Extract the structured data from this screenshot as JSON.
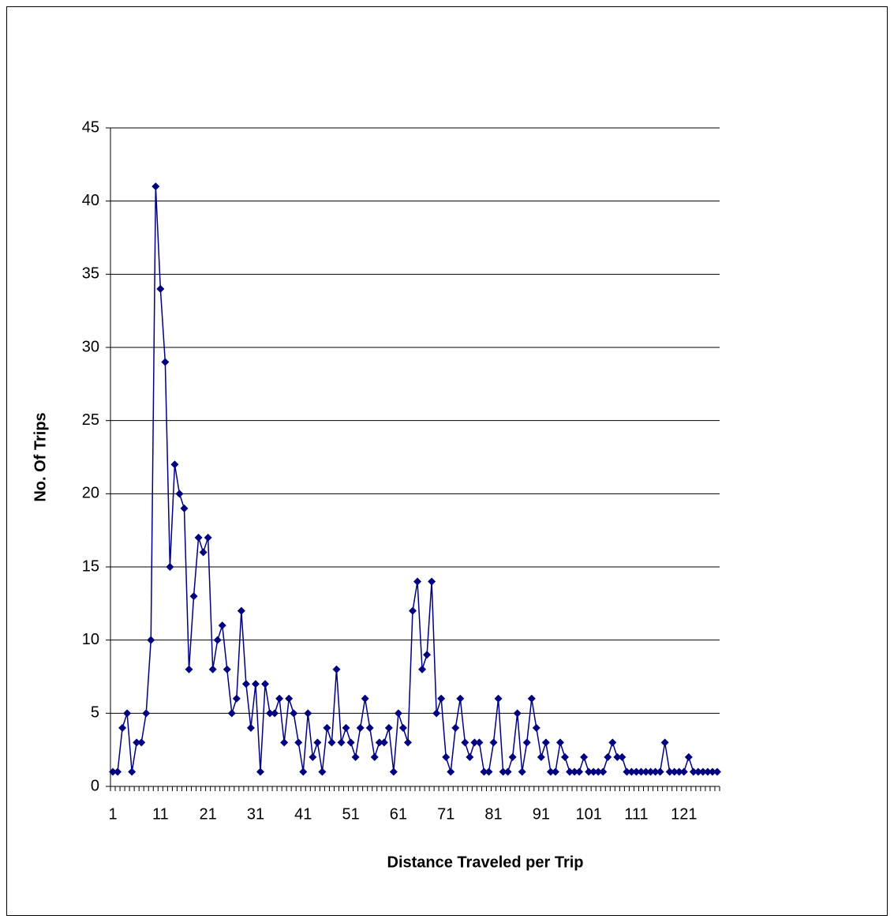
{
  "chart_data": {
    "type": "line",
    "x_label": "Distance Traveled per Trip",
    "y_label": "No. Of Trips",
    "categories": [
      "1",
      null,
      null,
      null,
      null,
      null,
      null,
      null,
      null,
      null,
      "11",
      null,
      null,
      null,
      null,
      null,
      null,
      null,
      null,
      null,
      "21",
      null,
      null,
      null,
      null,
      null,
      null,
      null,
      null,
      null,
      "31",
      null,
      null,
      null,
      null,
      null,
      null,
      null,
      null,
      null,
      "41",
      null,
      null,
      null,
      null,
      null,
      null,
      null,
      null,
      null,
      "51",
      null,
      null,
      null,
      null,
      null,
      null,
      null,
      null,
      null,
      "61",
      null,
      null,
      null,
      null,
      null,
      null,
      null,
      null,
      null,
      "71",
      null,
      null,
      null,
      null,
      null,
      null,
      null,
      null,
      null,
      "81",
      null,
      null,
      null,
      null,
      null,
      null,
      null,
      null,
      null,
      "91",
      null,
      null,
      null,
      null,
      null,
      null,
      null,
      null,
      null,
      "101",
      null,
      null,
      null,
      null,
      null,
      null,
      null,
      null,
      null,
      "111",
      null,
      null,
      null,
      null,
      null,
      null,
      null,
      null,
      null,
      "121",
      null,
      null,
      null,
      null,
      null,
      null,
      null
    ],
    "series": [
      {
        "color": "#000080",
        "values": [
          1,
          1,
          4,
          5,
          1,
          3,
          3,
          5,
          10,
          41,
          34,
          29,
          15,
          22,
          20,
          19,
          8,
          13,
          17,
          16,
          17,
          8,
          10,
          11,
          8,
          5,
          6,
          12,
          7,
          4,
          7,
          1,
          7,
          5,
          5,
          6,
          3,
          6,
          5,
          3,
          1,
          5,
          2,
          3,
          1,
          4,
          3,
          8,
          3,
          4,
          3,
          2,
          4,
          6,
          4,
          2,
          3,
          3,
          4,
          1,
          5,
          4,
          3,
          12,
          14,
          8,
          9,
          14,
          5,
          6,
          2,
          1,
          4,
          6,
          3,
          2,
          3,
          3,
          1,
          1,
          3,
          6,
          1,
          1,
          2,
          5,
          1,
          3,
          6,
          4,
          2,
          3,
          1,
          1,
          3,
          2,
          1,
          1,
          1,
          2,
          1,
          1,
          1,
          1,
          2,
          3,
          2,
          2,
          1,
          1,
          1,
          1,
          1,
          1,
          1,
          1,
          3,
          1,
          1,
          1,
          1,
          2,
          1,
          1,
          1,
          1,
          1,
          1
        ]
      }
    ],
    "ylim": [
      0,
      45
    ],
    "yticks": [
      0,
      5,
      10,
      15,
      20,
      25,
      30,
      35,
      40,
      45
    ],
    "grid": true
  }
}
